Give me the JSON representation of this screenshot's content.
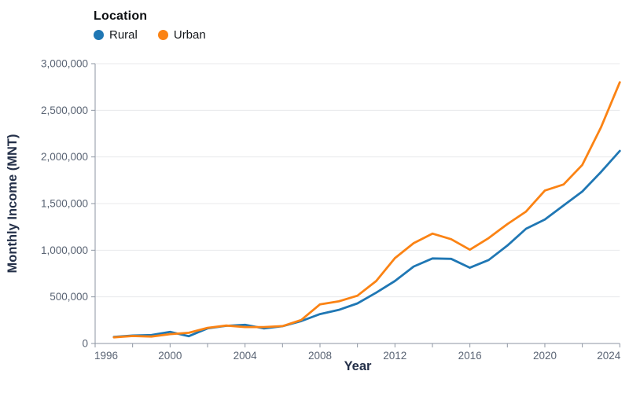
{
  "legend": {
    "title": "Location"
  },
  "axes": {
    "x_title": "Year",
    "y_title": "Monthly Income (MNT)"
  },
  "chart_data": {
    "type": "line",
    "title": "",
    "xlabel": "Year",
    "ylabel": "Monthly Income (MNT)",
    "legend_title": "Location",
    "legend_position": "top-left",
    "grid": "horizontal",
    "xlim": [
      1996,
      2024
    ],
    "ylim": [
      0,
      3000000
    ],
    "x": [
      1997,
      1998,
      1999,
      2000,
      2001,
      2002,
      2003,
      2004,
      2005,
      2006,
      2007,
      2008,
      2009,
      2010,
      2011,
      2012,
      2013,
      2014,
      2015,
      2016,
      2017,
      2018,
      2019,
      2020,
      2021,
      2022,
      2023,
      2024
    ],
    "series": [
      {
        "name": "Rural",
        "color": "#1f77b4",
        "values": [
          70000,
          85000,
          90000,
          125000,
          78000,
          162000,
          190000,
          200000,
          162000,
          185000,
          240000,
          315000,
          360000,
          430000,
          545000,
          670000,
          825000,
          912000,
          908000,
          812000,
          895000,
          1050000,
          1230000,
          1330000,
          1480000,
          1630000,
          1840000,
          2065000
        ]
      },
      {
        "name": "Urban",
        "color": "#fb8314",
        "values": [
          66000,
          80000,
          74000,
          100000,
          115000,
          168000,
          192000,
          176000,
          176000,
          186000,
          252000,
          420000,
          452000,
          512000,
          670000,
          915000,
          1075000,
          1178000,
          1118000,
          1005000,
          1130000,
          1280000,
          1415000,
          1640000,
          1705000,
          1915000,
          2320000,
          2800000
        ]
      }
    ],
    "x_major_ticks": [
      1996,
      2000,
      2004,
      2008,
      2012,
      2016,
      2020,
      2024
    ],
    "x_major_tick_labels": [
      "1996",
      "2000",
      "2004",
      "2008",
      "2012",
      "2016",
      "2020",
      "2024"
    ],
    "x_minor_ticks": [
      1998,
      2002,
      2006,
      2010,
      2014,
      2018,
      2022
    ],
    "y_ticks": [
      0,
      500000,
      1000000,
      1500000,
      2000000,
      2500000,
      3000000
    ],
    "y_tick_labels": [
      "0",
      "500,000",
      "1,000,000",
      "1,500,000",
      "2,000,000",
      "2,500,000",
      "3,000,000"
    ]
  }
}
